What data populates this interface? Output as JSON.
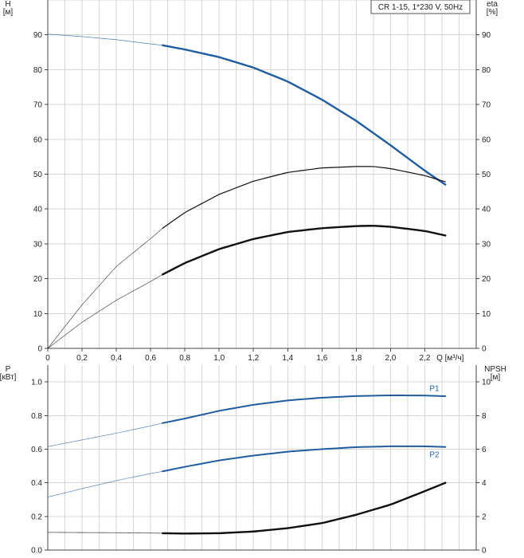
{
  "chart_data": [
    {
      "type": "line",
      "title": "CR 1-15, 1*230 V, 50Hz",
      "xlabel": "Q [м³/ч]",
      "ylabel": "H\n[м]",
      "y2label": "eta\n[%]",
      "xlim": [
        0,
        2.5
      ],
      "ylim": [
        0,
        100
      ],
      "y2lim": [
        0,
        100
      ],
      "xticks": [
        0,
        0.2,
        0.4,
        0.6,
        0.8,
        1.0,
        1.2,
        1.4,
        1.6,
        1.8,
        2.0,
        2.2
      ],
      "xtick_labels": [
        "0",
        "0,2",
        "0,4",
        "0,6",
        "0,8",
        "1,0",
        "1,2",
        "1,4",
        "1,6",
        "1,8",
        "2,0",
        "2,2"
      ],
      "yticks": [
        0,
        10,
        20,
        30,
        40,
        50,
        60,
        70,
        80,
        90
      ],
      "y2ticks": [
        0,
        10,
        20,
        30,
        40,
        50,
        60,
        70,
        80,
        90
      ],
      "grid": true,
      "series": [
        {
          "role": "H",
          "color": "#1f5da0",
          "x": [
            0,
            0.2,
            0.4,
            0.6,
            0.67,
            0.8,
            1.0,
            1.2,
            1.4,
            1.6,
            1.8,
            2.0,
            2.2,
            2.32
          ],
          "y": [
            90.2,
            89.5,
            88.6,
            87.4,
            87.0,
            85.8,
            83.6,
            80.6,
            76.6,
            71.4,
            65.3,
            58.3,
            51.0,
            47.0
          ],
          "duty_range": [
            0.67,
            2.32
          ]
        },
        {
          "role": "eta-thin",
          "color": "#111111",
          "x": [
            0,
            0.2,
            0.4,
            0.6,
            0.67,
            0.8,
            1.0,
            1.2,
            1.4,
            1.6,
            1.8,
            1.9,
            2.0,
            2.2,
            2.32
          ],
          "y": [
            0,
            12.5,
            23.5,
            31.5,
            34.5,
            39.0,
            44.2,
            48.0,
            50.5,
            51.8,
            52.2,
            52.2,
            51.6,
            49.6,
            47.8
          ],
          "duty_range": [
            0.67,
            2.32
          ]
        },
        {
          "role": "eta-thick",
          "color": "#111111",
          "x": [
            0,
            0.2,
            0.4,
            0.6,
            0.67,
            0.8,
            1.0,
            1.2,
            1.4,
            1.6,
            1.8,
            1.9,
            2.0,
            2.2,
            2.32
          ],
          "y": [
            0,
            7.5,
            13.8,
            19.2,
            21.2,
            24.5,
            28.5,
            31.4,
            33.4,
            34.5,
            35.1,
            35.2,
            34.9,
            33.7,
            32.4
          ],
          "duty_range": [
            0.67,
            2.32
          ]
        }
      ]
    },
    {
      "type": "line",
      "ylabel": "P\n[кВт]",
      "y2label": "NPSH\n[м]",
      "xlim": [
        0,
        2.5
      ],
      "ylim": [
        0,
        1.1
      ],
      "y2lim": [
        0,
        11
      ],
      "yticks": [
        0,
        0.2,
        0.4,
        0.6,
        0.8,
        1.0
      ],
      "ytick_labels": [
        "0.0",
        "0.2",
        "0.4",
        "0.6",
        "0.8",
        "1.0"
      ],
      "y2ticks": [
        0,
        2,
        4,
        6,
        8,
        10
      ],
      "grid": true,
      "series": [
        {
          "name": "P1",
          "color": "#1f5da0",
          "x": [
            0,
            0.2,
            0.4,
            0.6,
            0.67,
            0.8,
            1.0,
            1.2,
            1.4,
            1.6,
            1.8,
            2.0,
            2.2,
            2.32
          ],
          "y": [
            0.615,
            0.655,
            0.695,
            0.738,
            0.755,
            0.782,
            0.828,
            0.864,
            0.89,
            0.906,
            0.916,
            0.92,
            0.919,
            0.915
          ],
          "duty_range": [
            0.67,
            2.32
          ]
        },
        {
          "name": "P2",
          "color": "#1f5da0",
          "x": [
            0,
            0.2,
            0.4,
            0.6,
            0.67,
            0.8,
            1.0,
            1.2,
            1.4,
            1.6,
            1.8,
            2.0,
            2.2,
            2.32
          ],
          "y": [
            0.315,
            0.365,
            0.413,
            0.455,
            0.468,
            0.495,
            0.533,
            0.562,
            0.585,
            0.6,
            0.612,
            0.617,
            0.617,
            0.613
          ],
          "duty_range": [
            0.67,
            2.32
          ]
        },
        {
          "role": "NPSH",
          "color": "#111111",
          "axis": "y2",
          "x": [
            0,
            0.2,
            0.4,
            0.6,
            0.67,
            0.8,
            1.0,
            1.2,
            1.4,
            1.6,
            1.8,
            2.0,
            2.2,
            2.32
          ],
          "y": [
            1.05,
            1.04,
            1.03,
            1.01,
            1.0,
            0.98,
            1.0,
            1.1,
            1.3,
            1.6,
            2.1,
            2.7,
            3.5,
            4.0
          ],
          "duty_range": [
            0.67,
            2.32
          ]
        }
      ]
    }
  ]
}
